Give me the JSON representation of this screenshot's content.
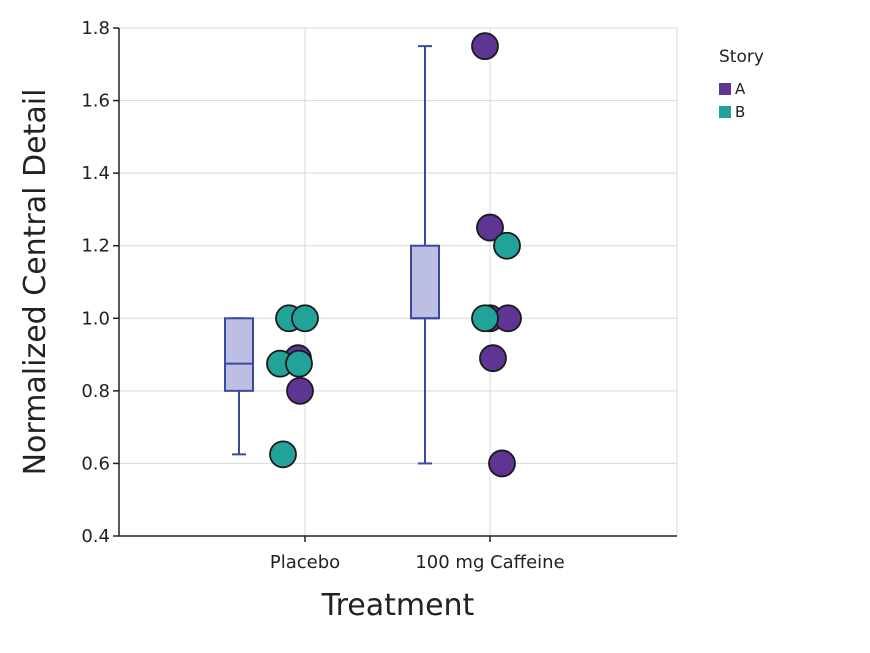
{
  "chart_data": {
    "type": "boxplot-with-points",
    "title": "",
    "xlabel": "Treatment",
    "ylabel": "Normalized Central Detail",
    "categories": [
      "Placebo",
      "100 mg Caffeine"
    ],
    "ylim": [
      0.4,
      1.8
    ],
    "yticks": [
      0.4,
      0.6,
      0.8,
      1.0,
      1.2,
      1.4,
      1.6,
      1.8
    ],
    "ytick_labels": [
      "0.4",
      "0.6",
      "0.8",
      "1.0",
      "1.2",
      "1.4",
      "1.6",
      "1.8"
    ],
    "grid": true,
    "boxes": [
      {
        "category": "Placebo",
        "whisker_low": 0.625,
        "q1": 0.8,
        "median": 0.875,
        "q3": 1.0,
        "whisker_high": 1.0
      },
      {
        "category": "100 mg Caffeine",
        "whisker_low": 0.6,
        "q1": 1.0,
        "median": 1.0,
        "q3": 1.2,
        "whisker_high": 1.75
      }
    ],
    "legend": {
      "title": "Story",
      "placement": "right",
      "entries": [
        {
          "label": "A",
          "color": "#5e3593"
        },
        {
          "label": "B",
          "color": "#22a39a"
        }
      ]
    },
    "series": [
      {
        "name": "A",
        "color": "#5e3593",
        "points": [
          {
            "category": "Placebo",
            "y": 0.89
          },
          {
            "category": "Placebo",
            "y": 0.8
          },
          {
            "category": "100 mg Caffeine",
            "y": 1.75
          },
          {
            "category": "100 mg Caffeine",
            "y": 1.25
          },
          {
            "category": "100 mg Caffeine",
            "y": 1.0
          },
          {
            "category": "100 mg Caffeine",
            "y": 1.0
          },
          {
            "category": "100 mg Caffeine",
            "y": 0.89
          },
          {
            "category": "100 mg Caffeine",
            "y": 0.6
          }
        ]
      },
      {
        "name": "B",
        "color": "#22a39a",
        "points": [
          {
            "category": "Placebo",
            "y": 1.0
          },
          {
            "category": "Placebo",
            "y": 1.0
          },
          {
            "category": "Placebo",
            "y": 0.875
          },
          {
            "category": "Placebo",
            "y": 0.875
          },
          {
            "category": "Placebo",
            "y": 0.625
          },
          {
            "category": "100 mg Caffeine",
            "y": 1.2
          },
          {
            "category": "100 mg Caffeine",
            "y": 1.0
          }
        ]
      }
    ],
    "colors": {
      "box_fill": "#bcbfe3",
      "box_stroke": "#3a4aa0",
      "grid": "#d9d9d9",
      "axis": "#222222",
      "point_stroke": "#1a1a1a"
    }
  }
}
